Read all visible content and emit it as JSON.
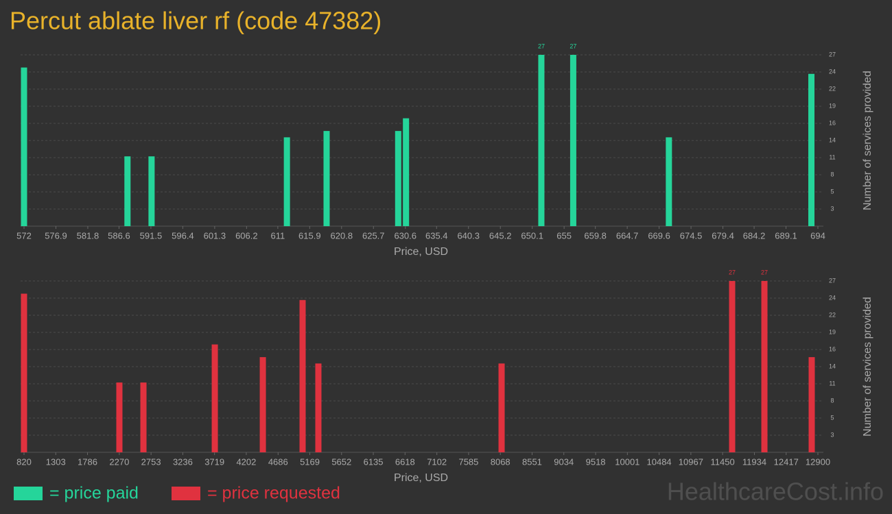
{
  "title": "Percut ablate liver rf (code 47382)",
  "watermark": "HealthcareCost.info",
  "chart_data": [
    {
      "type": "bar",
      "x": [
        572,
        587.9,
        591.6,
        612.4,
        618.5,
        629.5,
        630.7,
        651.5,
        656.4,
        671.1,
        693.0
      ],
      "series": [
        {
          "name": "= price paid",
          "color": "#25d59a",
          "values": [
            25,
            11,
            11,
            14,
            15,
            15,
            17,
            27,
            27,
            14,
            24
          ]
        }
      ],
      "xlabel": "Price, USD",
      "ylabel": "Number of services provided",
      "xlim": [
        572,
        694
      ],
      "xticks": [
        572,
        576.9,
        581.8,
        586.6,
        591.5,
        596.4,
        601.3,
        606.2,
        611,
        615.9,
        620.8,
        625.7,
        630.6,
        635.4,
        640.3,
        645.2,
        650.1,
        655,
        659.8,
        664.7,
        669.6,
        674.5,
        679.4,
        684.2,
        689.1,
        694
      ],
      "ylim": [
        0,
        27
      ],
      "yticks": [
        {
          "value": 2.7,
          "label": "3"
        },
        {
          "value": 5.4,
          "label": "5"
        },
        {
          "value": 8.1,
          "label": "8"
        },
        {
          "value": 10.8,
          "label": "11"
        },
        {
          "value": 13.5,
          "label": "14"
        },
        {
          "value": 16.2,
          "label": "16"
        },
        {
          "value": 18.9,
          "label": "19"
        },
        {
          "value": 21.6,
          "label": "22"
        },
        {
          "value": 24.3,
          "label": "24"
        },
        27
      ],
      "grid": true
    },
    {
      "type": "bar",
      "x": [
        820,
        2271,
        2637,
        3723,
        4454,
        5059,
        5299,
        8087,
        11595,
        12086,
        12806
      ],
      "series": [
        {
          "name": "= price requested",
          "color": "#e0323f",
          "values": [
            25,
            11,
            11,
            17,
            15,
            24,
            14,
            14,
            27,
            27,
            15
          ]
        }
      ],
      "xlabel": "Price, USD",
      "ylabel": "Number of services provided",
      "xlim": [
        820,
        12900
      ],
      "xticks": [
        820,
        1303,
        1786,
        2270,
        2753,
        3236,
        3719,
        4202,
        4686,
        5169,
        5652,
        6135,
        6618,
        7102,
        7585,
        8068,
        8551,
        9034,
        9518,
        10001,
        10484,
        10967,
        11450,
        11934,
        12417,
        12900
      ],
      "ylim": [
        0,
        27
      ],
      "yticks": [
        {
          "value": 2.7,
          "label": "3"
        },
        {
          "value": 5.4,
          "label": "5"
        },
        {
          "value": 8.1,
          "label": "8"
        },
        {
          "value": 10.8,
          "label": "11"
        },
        {
          "value": 13.5,
          "label": "14"
        },
        {
          "value": 16.2,
          "label": "16"
        },
        {
          "value": 18.9,
          "label": "19"
        },
        {
          "value": 21.6,
          "label": "22"
        },
        {
          "value": 24.3,
          "label": "24"
        },
        27
      ],
      "grid": true
    }
  ]
}
